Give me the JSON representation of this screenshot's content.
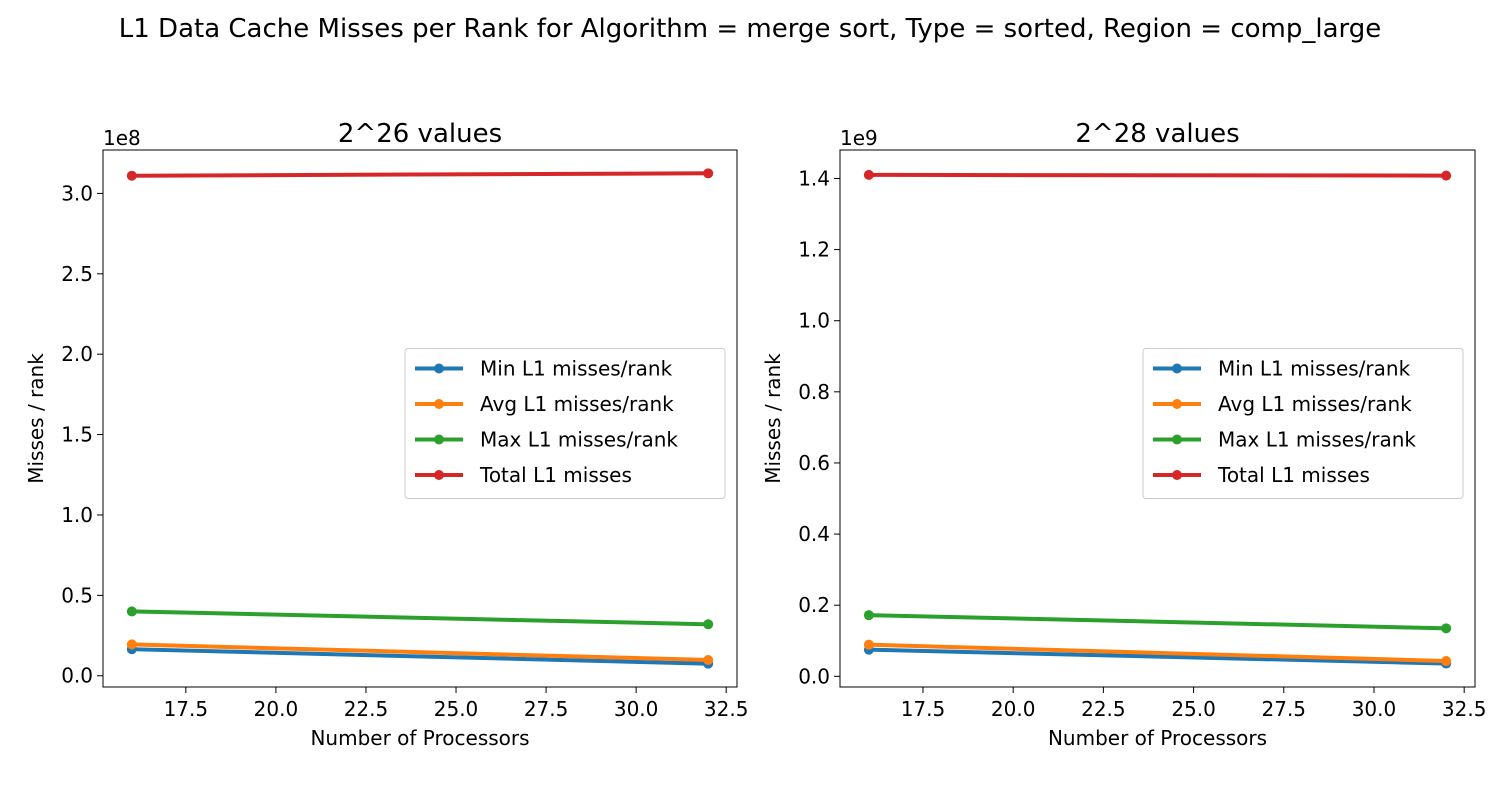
{
  "figure": {
    "suptitle": "L1 Data Cache Misses per Rank for Algorithm = merge sort, Type = sorted, Region = comp_large"
  },
  "chart_data": [
    {
      "type": "line",
      "title": "2^26 values",
      "xlabel": "Number of Processors",
      "ylabel": "Misses / rank",
      "offset_label": "1e8",
      "xlim": [
        15.2,
        32.8
      ],
      "ylim": [
        -0.07,
        3.27
      ],
      "xticks": [
        17.5,
        20.0,
        22.5,
        25.0,
        27.5,
        30.0,
        32.5
      ],
      "xtick_labels": [
        "17.5",
        "20.0",
        "22.5",
        "25.0",
        "27.5",
        "30.0",
        "32.5"
      ],
      "yticks": [
        0.0,
        0.5,
        1.0,
        1.5,
        2.0,
        2.5,
        3.0
      ],
      "ytick_labels": [
        "0.0",
        "0.5",
        "1.0",
        "1.5",
        "2.0",
        "2.5",
        "3.0"
      ],
      "grid": false,
      "legend_position": "center-right",
      "x": [
        16,
        32
      ],
      "series": [
        {
          "name": "Min L1 misses/rank",
          "color": "#1f77b4",
          "values": [
            0.165,
            0.075
          ]
        },
        {
          "name": "Avg L1 misses/rank",
          "color": "#ff7f0e",
          "values": [
            0.195,
            0.098
          ]
        },
        {
          "name": "Max L1 misses/rank",
          "color": "#2ca02c",
          "values": [
            0.4,
            0.32
          ]
        },
        {
          "name": "Total L1 misses",
          "color": "#d62728",
          "values": [
            3.11,
            3.125
          ]
        }
      ]
    },
    {
      "type": "line",
      "title": "2^28 values",
      "xlabel": "Number of Processors",
      "ylabel": "Misses / rank",
      "offset_label": "1e9",
      "xlim": [
        15.2,
        32.8
      ],
      "ylim": [
        -0.03,
        1.48
      ],
      "xticks": [
        17.5,
        20.0,
        22.5,
        25.0,
        27.5,
        30.0,
        32.5
      ],
      "xtick_labels": [
        "17.5",
        "20.0",
        "22.5",
        "25.0",
        "27.5",
        "30.0",
        "32.5"
      ],
      "yticks": [
        0.0,
        0.2,
        0.4,
        0.6,
        0.8,
        1.0,
        1.2,
        1.4
      ],
      "ytick_labels": [
        "0.0",
        "0.2",
        "0.4",
        "0.6",
        "0.8",
        "1.0",
        "1.2",
        "1.4"
      ],
      "grid": false,
      "legend_position": "center-right",
      "x": [
        16,
        32
      ],
      "series": [
        {
          "name": "Min L1 misses/rank",
          "color": "#1f77b4",
          "values": [
            0.075,
            0.036
          ]
        },
        {
          "name": "Avg L1 misses/rank",
          "color": "#ff7f0e",
          "values": [
            0.089,
            0.043
          ]
        },
        {
          "name": "Max L1 misses/rank",
          "color": "#2ca02c",
          "values": [
            0.172,
            0.135
          ]
        },
        {
          "name": "Total L1 misses",
          "color": "#d62728",
          "values": [
            1.41,
            1.408
          ]
        }
      ]
    }
  ]
}
